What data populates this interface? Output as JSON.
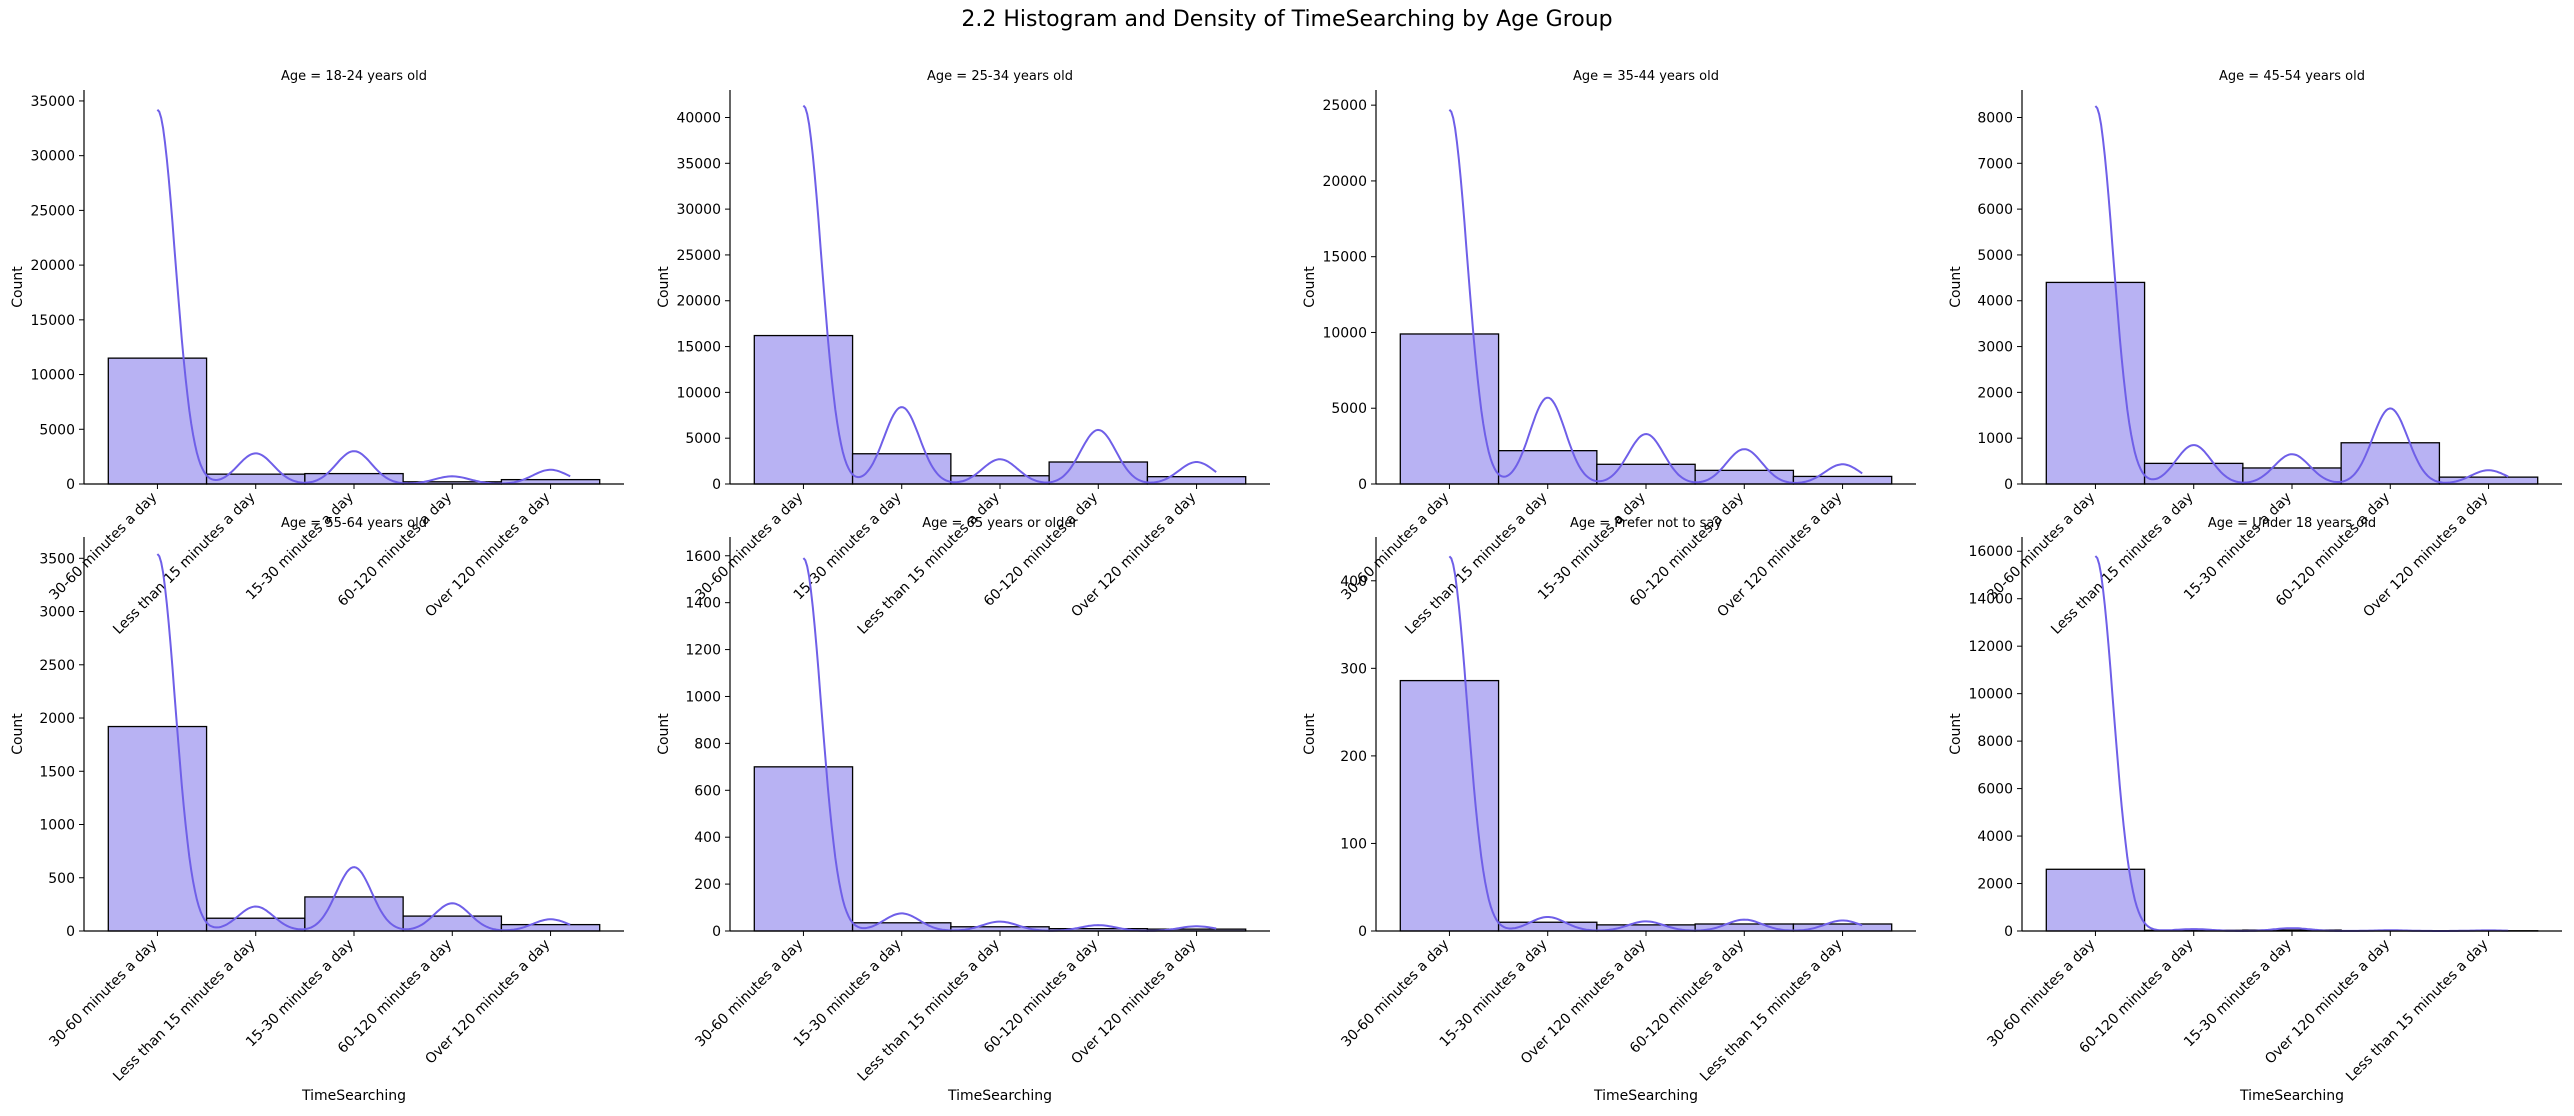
{
  "suptitle": "2.2 Histogram and Density of TimeSearching by Age Group",
  "colors": {
    "bar_fill": "#b8b2f3",
    "bar_edge": "#000000",
    "kde_line": "#6f5fe8"
  },
  "chart_data": [
    {
      "type": "bar",
      "title": "Age = 18-24 years old",
      "xlabel": "",
      "ylabel": "Count",
      "categories": [
        "30-60 minutes a day",
        "Less than 15 minutes a day",
        "15-30 minutes a day",
        "60-120 minutes a day",
        "Over 120 minutes a day"
      ],
      "values": [
        11500,
        900,
        950,
        200,
        400
      ],
      "kde_peaks": [
        34200,
        2800,
        3000,
        700,
        1300
      ],
      "ylim": [
        0,
        36000
      ],
      "yticks": [
        0,
        5000,
        10000,
        15000,
        20000,
        25000,
        30000,
        35000
      ],
      "show_xtick_labels": true
    },
    {
      "type": "bar",
      "title": "Age = 25-34 years old",
      "xlabel": "",
      "ylabel": "Count",
      "categories": [
        "30-60 minutes a day",
        "15-30 minutes a day",
        "Less than 15 minutes a day",
        "60-120 minutes a day",
        "Over 120 minutes a day"
      ],
      "values": [
        16200,
        3300,
        900,
        2400,
        800
      ],
      "kde_peaks": [
        41300,
        8400,
        2700,
        5900,
        2400
      ],
      "ylim": [
        0,
        43000
      ],
      "yticks": [
        0,
        5000,
        10000,
        15000,
        20000,
        25000,
        30000,
        35000,
        40000
      ],
      "show_xtick_labels": true
    },
    {
      "type": "bar",
      "title": "Age = 35-44 years old",
      "xlabel": "",
      "ylabel": "Count",
      "categories": [
        "30-60 minutes a day",
        "Less than 15 minutes a day",
        "15-30 minutes a day",
        "60-120 minutes a day",
        "Over 120 minutes a day"
      ],
      "values": [
        9900,
        2200,
        1300,
        900,
        500
      ],
      "kde_peaks": [
        24700,
        5700,
        3300,
        2300,
        1300
      ],
      "ylim": [
        0,
        26000
      ],
      "yticks": [
        0,
        5000,
        10000,
        15000,
        20000,
        25000
      ],
      "show_xtick_labels": true
    },
    {
      "type": "bar",
      "title": "Age = 45-54 years old",
      "xlabel": "",
      "ylabel": "Count",
      "categories": [
        "30-60 minutes a day",
        "Less than 15 minutes a day",
        "15-30 minutes a day",
        "60-120 minutes a day",
        "Over 120 minutes a day"
      ],
      "values": [
        4400,
        450,
        350,
        900,
        150
      ],
      "kde_peaks": [
        8250,
        850,
        650,
        1650,
        300
      ],
      "ylim": [
        0,
        8600
      ],
      "yticks": [
        0,
        1000,
        2000,
        3000,
        4000,
        5000,
        6000,
        7000,
        8000
      ],
      "show_xtick_labels": true
    },
    {
      "type": "bar",
      "title": "Age = 55-64 years old",
      "xlabel": "TimeSearching",
      "ylabel": "Count",
      "categories": [
        "30-60 minutes a day",
        "Less than 15 minutes a day",
        "15-30 minutes a day",
        "60-120 minutes a day",
        "Over 120 minutes a day"
      ],
      "values": [
        1920,
        120,
        320,
        140,
        60
      ],
      "kde_peaks": [
        3540,
        230,
        600,
        260,
        110
      ],
      "ylim": [
        0,
        3700
      ],
      "yticks": [
        0,
        500,
        1000,
        1500,
        2000,
        2500,
        3000,
        3500
      ],
      "show_xtick_labels": true
    },
    {
      "type": "bar",
      "title": "Age = 65 years or older",
      "xlabel": "TimeSearching",
      "ylabel": "Count",
      "categories": [
        "30-60 minutes a day",
        "15-30 minutes a day",
        "Less than 15 minutes a day",
        "60-120 minutes a day",
        "Over 120 minutes a day"
      ],
      "values": [
        700,
        35,
        18,
        10,
        8
      ],
      "kde_peaks": [
        1590,
        75,
        40,
        25,
        20
      ],
      "ylim": [
        0,
        1680
      ],
      "yticks": [
        0,
        200,
        400,
        600,
        800,
        1000,
        1200,
        1400,
        1600
      ],
      "show_xtick_labels": true
    },
    {
      "type": "bar",
      "title": "Age = Prefer not to say",
      "xlabel": "TimeSearching",
      "ylabel": "Count",
      "categories": [
        "30-60 minutes a day",
        "15-30 minutes a day",
        "Over 120 minutes a day",
        "60-120 minutes a day",
        "Less than 15 minutes a day"
      ],
      "values": [
        286,
        10,
        7,
        8,
        8
      ],
      "kde_peaks": [
        428,
        16,
        11,
        13,
        12
      ],
      "ylim": [
        0,
        450
      ],
      "yticks": [
        0,
        100,
        200,
        300,
        400
      ],
      "show_xtick_labels": true
    },
    {
      "type": "bar",
      "title": "Age = Under 18 years old",
      "xlabel": "TimeSearching",
      "ylabel": "Count",
      "categories": [
        "30-60 minutes a day",
        "60-120 minutes a day",
        "15-30 minutes a day",
        "Over 120 minutes a day",
        "Less than 15 minutes a day"
      ],
      "values": [
        2600,
        30,
        40,
        10,
        10
      ],
      "kde_peaks": [
        15800,
        80,
        120,
        30,
        25
      ],
      "ylim": [
        0,
        16600
      ],
      "yticks": [
        0,
        2000,
        4000,
        6000,
        8000,
        10000,
        12000,
        14000,
        16000
      ],
      "show_xtick_labels": true
    }
  ]
}
